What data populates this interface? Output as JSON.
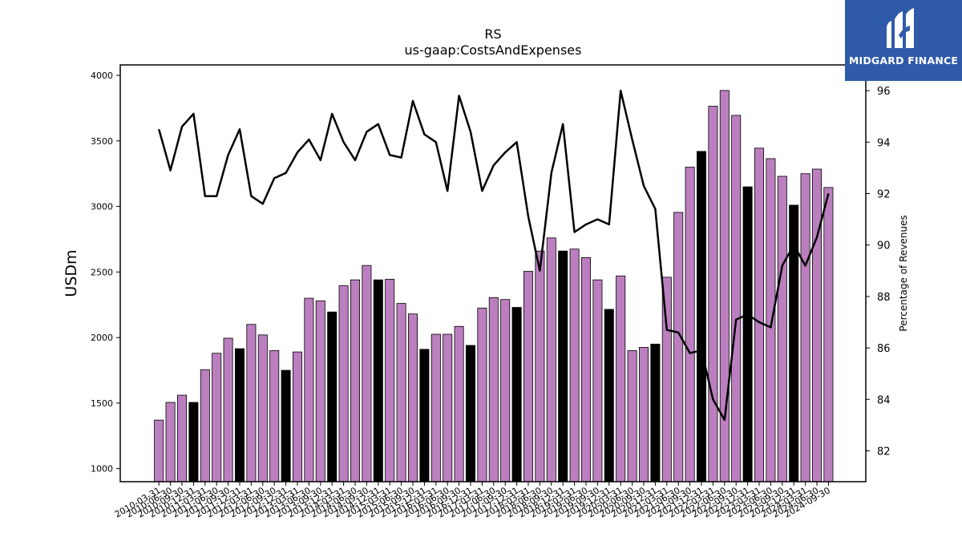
{
  "chart_data": {
    "type": "bar",
    "title": "RS",
    "subtitle": "us-gaap:CostsAndExpenses",
    "ylabel": "USDm",
    "y2label": "Percentage of Revenues",
    "ylim": [
      900,
      4080
    ],
    "y2lim": [
      80.8,
      97.0
    ],
    "yticks": [
      1000,
      1500,
      2000,
      2500,
      3000,
      3500,
      4000
    ],
    "y2ticks": [
      82,
      84,
      86,
      88,
      90,
      92,
      94,
      96
    ],
    "colors": {
      "bar": "#bb7fbf",
      "bar_q4": "#000000",
      "line": "#000000"
    },
    "categories": [
      "2010-03-31",
      "2010-06-30",
      "2010-09-30",
      "2010-12-31",
      "2011-03-31",
      "2011-06-30",
      "2011-09-30",
      "2011-12-31",
      "2012-03-31",
      "2012-06-30",
      "2012-09-30",
      "2012-12-31",
      "2013-03-31",
      "2013-06-30",
      "2013-09-30",
      "2013-12-31",
      "2014-03-31",
      "2014-06-30",
      "2014-09-30",
      "2014-12-31",
      "2015-03-31",
      "2015-06-30",
      "2015-09-30",
      "2015-12-31",
      "2016-03-31",
      "2016-06-30",
      "2016-09-30",
      "2016-12-31",
      "2017-03-31",
      "2017-06-30",
      "2017-09-30",
      "2017-12-31",
      "2018-03-31",
      "2018-06-30",
      "2018-09-30",
      "2018-12-31",
      "2019-03-31",
      "2019-06-30",
      "2019-09-30",
      "2019-12-31",
      "2020-03-31",
      "2020-06-30",
      "2020-09-30",
      "2020-12-31",
      "2021-03-31",
      "2021-06-30",
      "2021-09-30",
      "2021-12-31",
      "2022-03-31",
      "2022-06-30",
      "2022-09-30",
      "2022-12-31",
      "2023-03-31",
      "2023-06-30",
      "2023-09-30",
      "2023-12-31",
      "2024-03-31",
      "2024-06-30",
      "2024-09-30"
    ],
    "tick_labels": [
      "2010-03-31",
      "2010-06-30",
      "2010-09-30",
      "2010-12-31",
      "2011-03-31",
      "2011-06-30",
      "2011-09-30",
      "2011-12-31",
      "2012-03-31",
      "2012-06-30",
      "2012-09-30",
      "2012-12-31",
      "2013-03-31",
      "2013-06-30",
      "2013-09-30",
      "2013-12-31",
      "2014-03-31",
      "2014-06-30",
      "2014-09-30",
      "2014-12-31",
      "2015-03-31",
      "2015-06-30",
      "2015-09-30",
      "2015-12-31",
      "2016-03-31",
      "2016-06-30",
      "2016-09-30",
      "2016-12-31",
      "2017-03-31",
      "2017-06-30",
      "2017-09-30",
      "2017-12-31",
      "2018-03-31",
      "2018-06-30",
      "2018-09-30",
      "2018-12-31",
      "2019-03-31",
      "2019-06-30",
      "2019-09-30",
      "2019-12-31",
      "2020-03-31",
      "2020-06-30",
      "2020-09-30",
      "2020-12-31",
      "2021-03-31",
      "2021-06-30",
      "2021-09-30",
      "2021-12-31",
      "2022-03-31",
      "2022-06-30",
      "2022-09-30",
      "2022-12-31",
      "2023-03-31",
      "2023-06-30",
      "2023-09-30",
      "2023-12-31",
      "2024-03-31",
      "2024-06-30",
      "2024-09-30"
    ],
    "series": [
      {
        "type": "bar",
        "values": [
          1370,
          1505,
          1560,
          1505,
          1755,
          1880,
          1995,
          1915,
          2100,
          2020,
          1900,
          1750,
          1890,
          2300,
          2280,
          2195,
          2395,
          2440,
          2550,
          2440,
          2445,
          2260,
          2180,
          1910,
          2025,
          2025,
          2085,
          1940,
          2225,
          2305,
          2290,
          2230,
          2505,
          2660,
          2760,
          2660,
          2675,
          2610,
          2440,
          2215,
          2470,
          1900,
          1925,
          1950,
          2460,
          2955,
          3300,
          3420,
          3765,
          3885,
          3695,
          3150,
          3445,
          3365,
          3230,
          3010,
          3250,
          3285,
          3145
        ],
        "q4_black": [
          false,
          false,
          false,
          true,
          false,
          false,
          false,
          true,
          false,
          false,
          false,
          true,
          false,
          false,
          false,
          true,
          false,
          false,
          false,
          true,
          false,
          false,
          false,
          true,
          false,
          false,
          false,
          true,
          false,
          false,
          false,
          true,
          false,
          false,
          false,
          true,
          false,
          false,
          false,
          true,
          false,
          false,
          false,
          true,
          false,
          false,
          false,
          true,
          false,
          false,
          false,
          true,
          false,
          false,
          false,
          true,
          false,
          false,
          false
        ]
      },
      {
        "type": "line",
        "axis": "right",
        "values": [
          94.5,
          92.9,
          94.6,
          95.1,
          91.9,
          91.9,
          93.5,
          94.5,
          91.9,
          91.6,
          92.6,
          92.8,
          93.6,
          94.1,
          93.3,
          95.1,
          94.0,
          93.3,
          94.4,
          94.7,
          93.5,
          93.4,
          95.6,
          94.3,
          94.0,
          92.1,
          95.8,
          94.4,
          92.1,
          93.1,
          93.6,
          94.0,
          91.1,
          89.0,
          92.8,
          94.7,
          90.5,
          90.8,
          91.0,
          90.8,
          96.0,
          94.1,
          92.3,
          91.4,
          86.7,
          86.6,
          85.8,
          85.9,
          84.0,
          83.2,
          87.1,
          87.3,
          87.0,
          86.8,
          89.2,
          90.0,
          89.2,
          90.3,
          92.0
        ]
      }
    ]
  },
  "logo": {
    "text": "MIDGARD FINANCE"
  }
}
